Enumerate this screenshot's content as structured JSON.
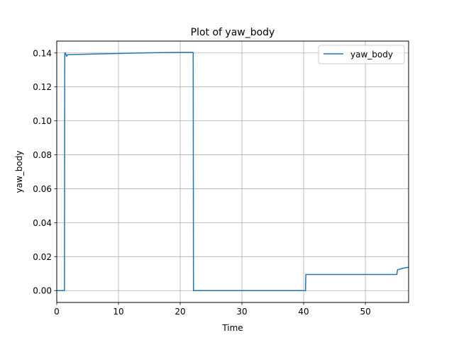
{
  "chart_data": {
    "type": "line",
    "title": "Plot of yaw_body",
    "xlabel": "Time",
    "ylabel": "yaw_body",
    "xlim": [
      0,
      57
    ],
    "ylim": [
      -0.007,
      0.147
    ],
    "xticks": [
      0,
      10,
      20,
      30,
      40,
      50
    ],
    "yticks": [
      0.0,
      0.02,
      0.04,
      0.06,
      0.08,
      0.1,
      0.12,
      0.14
    ],
    "ytick_labels": [
      "0.00",
      "0.02",
      "0.04",
      "0.06",
      "0.08",
      "0.10",
      "0.12",
      "0.14"
    ],
    "grid": true,
    "legend": "upper right",
    "series": [
      {
        "name": "yaw_body",
        "color": "#1f77b4",
        "x": [
          0,
          1.25,
          1.3,
          1.4,
          1.6,
          1.75,
          2.0,
          5,
          10,
          15,
          20,
          22.1,
          22.15,
          30,
          40.3,
          40.35,
          45,
          50,
          55.1,
          55.2,
          56,
          56.5,
          57
        ],
        "y": [
          0,
          0,
          0.14,
          0.14,
          0.138,
          0.139,
          0.139,
          0.1393,
          0.1397,
          0.1401,
          0.1403,
          0.1403,
          0,
          0,
          0,
          0.0095,
          0.0095,
          0.0095,
          0.0095,
          0.0122,
          0.0131,
          0.0135,
          0.0137
        ]
      }
    ]
  }
}
